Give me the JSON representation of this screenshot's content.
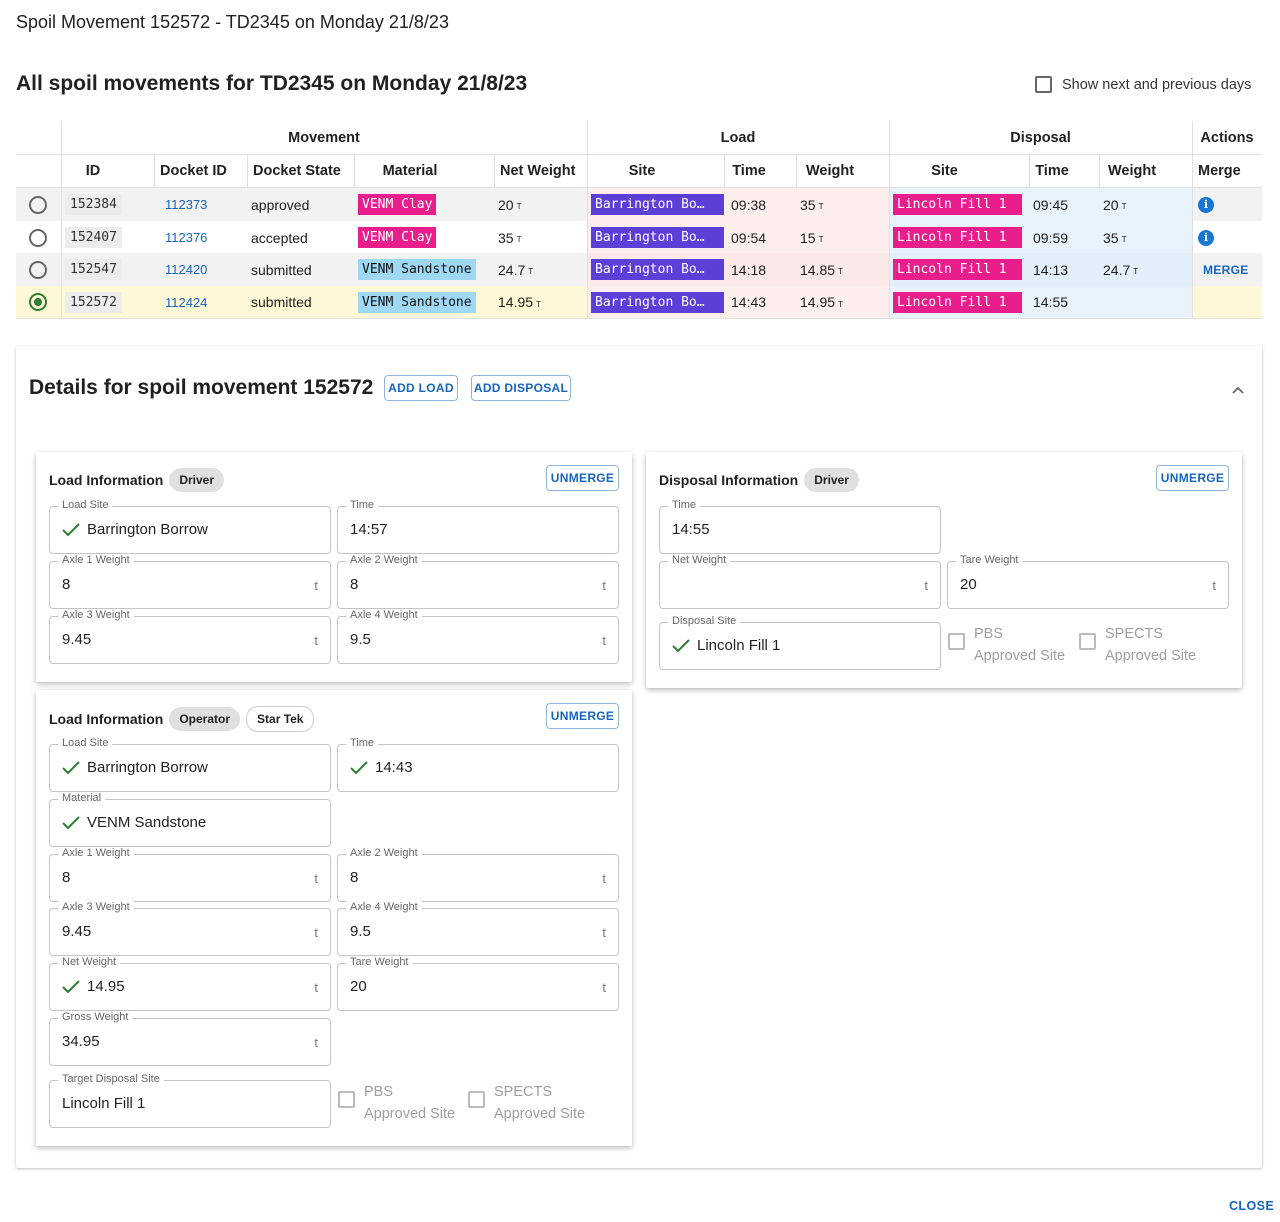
{
  "dialog_title": "Spoil Movement 152572 - TD2345 on Monday 21/8/23",
  "section_title": "All spoil movements for TD2345 on Monday 21/8/23",
  "show_days_label": "Show next and previous days",
  "table": {
    "group_headers": {
      "movement": "Movement",
      "load": "Load",
      "disposal": "Disposal",
      "actions": "Actions"
    },
    "columns": [
      "ID",
      "Docket ID",
      "Docket State",
      "Material",
      "Net Weight",
      "Site",
      "Time",
      "Weight",
      "Site",
      "Time",
      "Weight",
      "Merge"
    ],
    "unit": "T",
    "rows": [
      {
        "id": "152384",
        "docket": "112373",
        "state": "approved",
        "material": "VENM Clay",
        "net": "20",
        "load_site": "Barrington Bo…",
        "load_time": "09:38",
        "load_weight": "35",
        "disp_site": "Lincoln Fill 1",
        "disp_time": "09:45",
        "disp_weight": "20",
        "action": "info"
      },
      {
        "id": "152407",
        "docket": "112376",
        "state": "accepted",
        "material": "VENM Clay",
        "net": "35",
        "load_site": "Barrington Bo…",
        "load_time": "09:54",
        "load_weight": "15",
        "disp_site": "Lincoln Fill 1",
        "disp_time": "09:59",
        "disp_weight": "35",
        "action": "info"
      },
      {
        "id": "152547",
        "docket": "112420",
        "state": "submitted",
        "material": "VENM Sandstone",
        "net": "24.7",
        "load_site": "Barrington Bo…",
        "load_time": "14:18",
        "load_weight": "14.85",
        "disp_site": "Lincoln Fill 1",
        "disp_time": "14:13",
        "disp_weight": "24.7",
        "action": "MERGE"
      },
      {
        "id": "152572",
        "docket": "112424",
        "state": "submitted",
        "material": "VENM Sandstone",
        "net": "14.95",
        "load_site": "Barrington Bo…",
        "load_time": "14:43",
        "load_weight": "14.95",
        "disp_site": "Lincoln Fill 1",
        "disp_time": "14:55",
        "disp_weight": "",
        "action": ""
      }
    ],
    "selected_index": 3
  },
  "details": {
    "title": "Details for spoil movement 152572",
    "add_load": "ADD LOAD",
    "add_disposal": "ADD DISPOSAL",
    "unmerge": "UNMERGE",
    "unit": "t",
    "load_driver": {
      "title": "Load Information",
      "tag": "Driver",
      "load_site_label": "Load Site",
      "load_site": "Barrington Borrow",
      "time_label": "Time",
      "time": "14:57",
      "axle1_label": "Axle 1 Weight",
      "axle1": "8",
      "axle2_label": "Axle 2 Weight",
      "axle2": "8",
      "axle3_label": "Axle 3 Weight",
      "axle3": "9.45",
      "axle4_label": "Axle 4 Weight",
      "axle4": "9.5"
    },
    "disposal_driver": {
      "title": "Disposal Information",
      "tag": "Driver",
      "time_label": "Time",
      "time": "14:55",
      "net_label": "Net Weight",
      "net": "",
      "tare_label": "Tare Weight",
      "tare": "20",
      "site_label": "Disposal Site",
      "site": "Lincoln Fill 1",
      "pbs_line1": "PBS",
      "pbs_line2": "Approved Site",
      "spects_line1": "SPECTS",
      "spects_line2": "Approved Site"
    },
    "load_operator": {
      "title": "Load Information",
      "tag": "Operator",
      "tag2": "Star Tek",
      "load_site_label": "Load Site",
      "load_site": "Barrington Borrow",
      "time_label": "Time",
      "time": "14:43",
      "material_label": "Material",
      "material": "VENM Sandstone",
      "axle1_label": "Axle 1 Weight",
      "axle1": "8",
      "axle2_label": "Axle 2 Weight",
      "axle2": "8",
      "axle3_label": "Axle 3 Weight",
      "axle3": "9.45",
      "axle4_label": "Axle 4 Weight",
      "axle4": "9.5",
      "net_label": "Net Weight",
      "net": "14.95",
      "tare_label": "Tare Weight",
      "tare": "20",
      "gross_label": "Gross Weight",
      "gross": "34.95",
      "target_label": "Target Disposal Site",
      "target": "Lincoln Fill 1",
      "pbs_line1": "PBS",
      "pbs_line2": "Approved Site",
      "spects_line1": "SPECTS",
      "spects_line2": "Approved Site"
    }
  },
  "close_label": "CLOSE",
  "colors": {
    "accent": "#1565c0",
    "clay": "#e91e8c",
    "sandstone": "#9fd8f2",
    "load_site": "#5b3fd6",
    "disposal_site": "#e91e8c",
    "selected_row": "#fff8d6",
    "load_tint": "#fdeeee",
    "disposal_tint": "#e7f2fb",
    "check": "#2e7d32"
  }
}
